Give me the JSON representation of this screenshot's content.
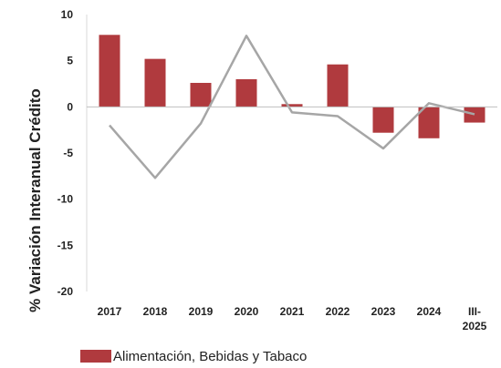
{
  "chart_data": {
    "type": "bar+line",
    "categories": [
      "2017",
      "2018",
      "2019",
      "2020",
      "2021",
      "2022",
      "2023",
      "2024",
      "III-2025"
    ],
    "category_labels": [
      [
        "2017"
      ],
      [
        "2018"
      ],
      [
        "2019"
      ],
      [
        "2020"
      ],
      [
        "2021"
      ],
      [
        "2022"
      ],
      [
        "2023"
      ],
      [
        "2024"
      ],
      [
        "III-",
        "2025"
      ]
    ],
    "series": [
      {
        "type": "bar",
        "name": "Alimentación, Bebidas y Tabaco",
        "color": "#b03a3e",
        "values": [
          7.8,
          5.2,
          2.6,
          3.0,
          0.3,
          4.6,
          -2.8,
          -3.4,
          -1.7
        ]
      },
      {
        "type": "line",
        "color": "#a6a6a6",
        "values": [
          -2.0,
          -7.7,
          -1.8,
          7.7,
          -0.6,
          -1.0,
          -4.5,
          0.4,
          -0.8
        ]
      }
    ],
    "ylabel": "% Variación Interanual Crédito",
    "ylim": [
      -20,
      10
    ],
    "yticks": [
      10,
      5,
      0,
      -5,
      -10,
      -15,
      -20
    ],
    "grid": false,
    "legend": "bottom"
  }
}
